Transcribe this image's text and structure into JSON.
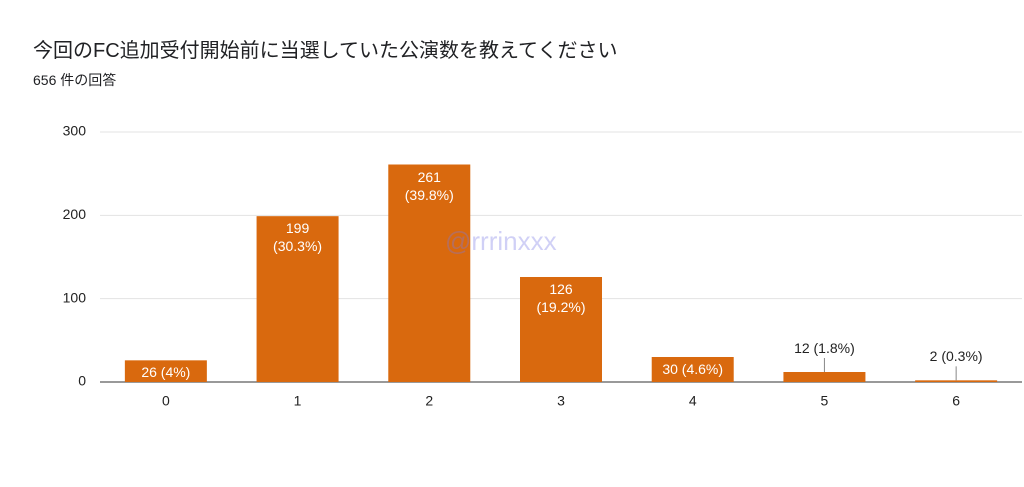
{
  "chart_data": {
    "type": "bar",
    "title": "今回のFC追加受付開始前に当選していた公演数を教えてください",
    "subtitle": "656 件の回答",
    "categories": [
      "0",
      "1",
      "2",
      "3",
      "4",
      "5",
      "6"
    ],
    "values": [
      26,
      199,
      261,
      126,
      30,
      12,
      2
    ],
    "value_labels": [
      "26 (4%)",
      "199 (30.3%)",
      "261 (39.8%)",
      "126 (19.2%)",
      "30 (4.6%)",
      "12 (1.8%)",
      "2 (0.3%)"
    ],
    "color": "#d9690e",
    "ylim": [
      0,
      300
    ],
    "yticks": [
      0,
      100,
      200,
      300
    ],
    "grid": true,
    "watermark": "@rrrinxxx"
  }
}
